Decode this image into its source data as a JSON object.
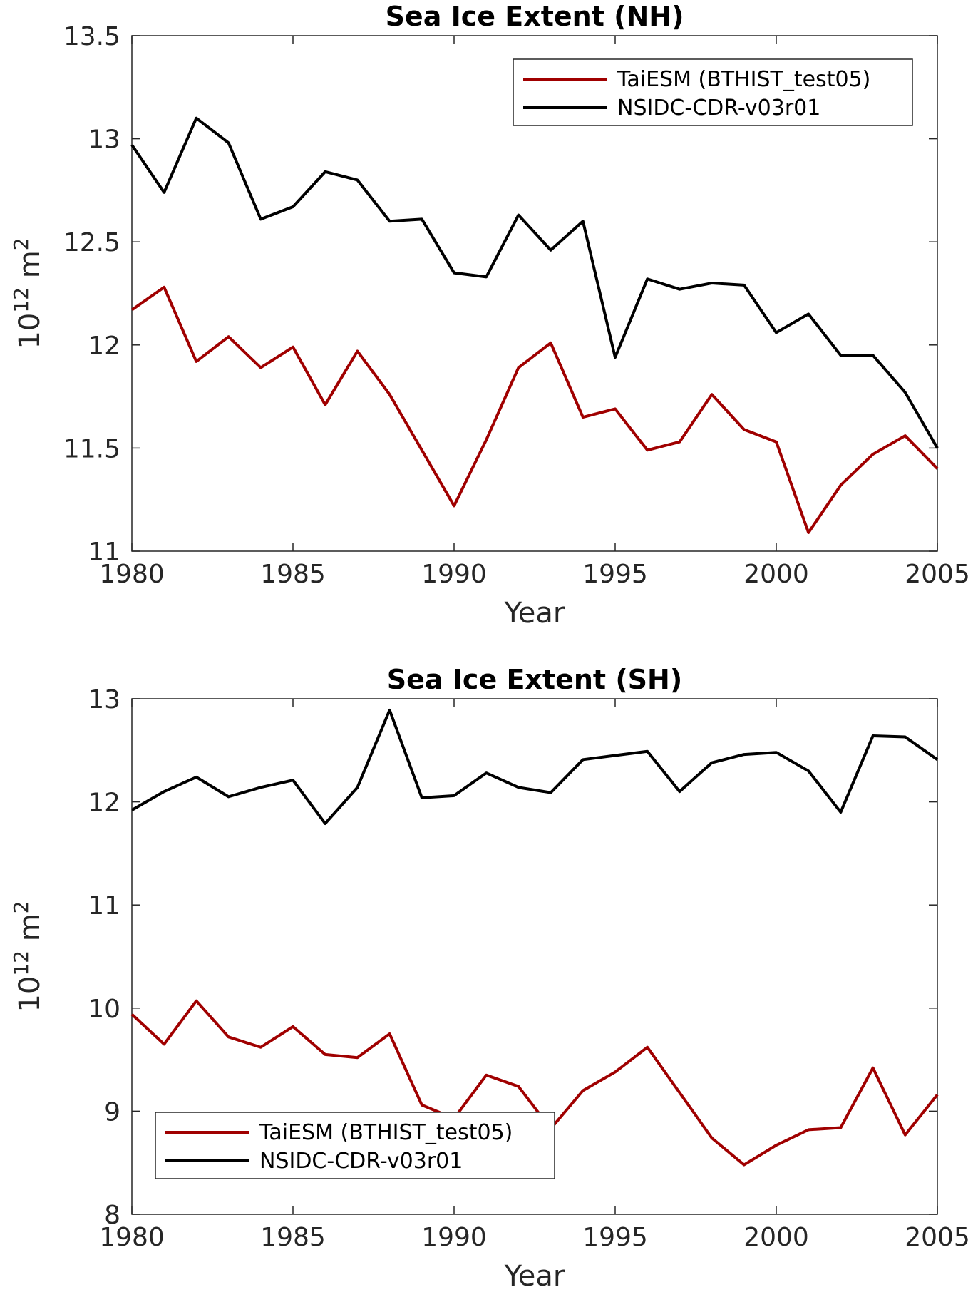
{
  "chart_data": [
    {
      "type": "line",
      "title": "Sea Ice Extent (NH)",
      "xlabel": "Year",
      "ylabel_base": "10",
      "ylabel_exp": "12",
      "ylabel_unit": "m",
      "ylabel_unit_exp": "2",
      "xlim": [
        1980,
        2005
      ],
      "ylim": [
        11,
        13.5
      ],
      "xticks": [
        1980,
        1985,
        1990,
        1995,
        2000,
        2005
      ],
      "yticks": [
        11,
        11.5,
        12,
        12.5,
        13,
        13.5
      ],
      "ytick_labels": [
        "11",
        "11.5",
        "12",
        "12.5",
        "13",
        "13.5"
      ],
      "legend_position": "top-right",
      "x": [
        1980,
        1981,
        1982,
        1983,
        1984,
        1985,
        1986,
        1987,
        1988,
        1989,
        1990,
        1991,
        1992,
        1993,
        1994,
        1995,
        1996,
        1997,
        1998,
        1999,
        2000,
        2001,
        2002,
        2003,
        2004,
        2005
      ],
      "series": [
        {
          "name": "TaiESM (BTHIST_test05)",
          "color": "#a00000",
          "values": [
            12.17,
            12.28,
            11.92,
            12.04,
            11.89,
            11.99,
            11.71,
            11.97,
            11.76,
            11.49,
            11.22,
            11.54,
            11.89,
            12.01,
            11.65,
            11.69,
            11.49,
            11.53,
            11.76,
            11.59,
            11.53,
            11.09,
            11.32,
            11.47,
            11.56,
            11.4
          ]
        },
        {
          "name": "NSIDC-CDR-v03r01",
          "color": "#000000",
          "values": [
            12.97,
            12.74,
            13.1,
            12.98,
            12.61,
            12.67,
            12.84,
            12.8,
            12.6,
            12.61,
            12.35,
            12.33,
            12.63,
            12.46,
            12.6,
            11.94,
            12.32,
            12.27,
            12.3,
            12.29,
            12.06,
            12.15,
            11.95,
            11.95,
            11.77,
            11.5
          ]
        }
      ]
    },
    {
      "type": "line",
      "title": "Sea Ice Extent (SH)",
      "xlabel": "Year",
      "ylabel_base": "10",
      "ylabel_exp": "12",
      "ylabel_unit": "m",
      "ylabel_unit_exp": "2",
      "xlim": [
        1980,
        2005
      ],
      "ylim": [
        8,
        13
      ],
      "xticks": [
        1980,
        1985,
        1990,
        1995,
        2000,
        2005
      ],
      "yticks": [
        8,
        9,
        10,
        11,
        12,
        13
      ],
      "ytick_labels": [
        "8",
        "9",
        "10",
        "11",
        "12",
        "13"
      ],
      "legend_position": "bottom-left",
      "x": [
        1980,
        1981,
        1982,
        1983,
        1984,
        1985,
        1986,
        1987,
        1988,
        1989,
        1990,
        1991,
        1992,
        1993,
        1994,
        1995,
        1996,
        1997,
        1998,
        1999,
        2000,
        2001,
        2002,
        2003,
        2004,
        2005
      ],
      "series": [
        {
          "name": "TaiESM (BTHIST_test05)",
          "color": "#a00000",
          "values": [
            9.94,
            9.65,
            10.07,
            9.72,
            9.62,
            9.82,
            9.55,
            9.52,
            9.75,
            9.06,
            8.93,
            9.35,
            9.24,
            8.83,
            9.2,
            9.38,
            9.62,
            9.18,
            8.74,
            8.48,
            8.67,
            8.82,
            8.84,
            9.42,
            8.77,
            9.16
          ]
        },
        {
          "name": "NSIDC-CDR-v03r01",
          "color": "#000000",
          "values": [
            11.92,
            12.1,
            12.24,
            12.05,
            12.14,
            12.21,
            11.79,
            12.14,
            12.89,
            12.04,
            12.06,
            12.28,
            12.14,
            12.09,
            12.41,
            12.45,
            12.49,
            12.1,
            12.38,
            12.46,
            12.48,
            12.3,
            11.9,
            12.64,
            12.63,
            12.41
          ]
        }
      ]
    }
  ]
}
